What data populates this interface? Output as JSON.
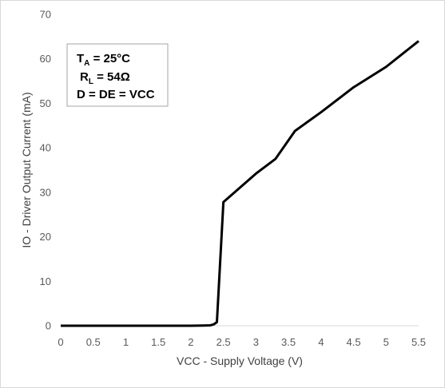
{
  "chart_data": {
    "type": "line",
    "xlabel": "VCC - Supply Voltage (V)",
    "ylabel": "IO - Driver Output Current (mA)",
    "xlim": [
      0,
      5.5
    ],
    "ylim": [
      0,
      70
    ],
    "xticks": [
      "0",
      "0.5",
      "1",
      "1.5",
      "2",
      "2.5",
      "3",
      "3.5",
      "4",
      "4.5",
      "5",
      "5.5"
    ],
    "yticks": [
      "0",
      "10",
      "20",
      "30",
      "40",
      "50",
      "60",
      "70"
    ],
    "grid": false,
    "series": [
      {
        "color": "#000000",
        "x": [
          0,
          2.0,
          2.2,
          2.3,
          2.35,
          2.4,
          2.5,
          3.0,
          3.3,
          3.6,
          4.0,
          4.5,
          5.0,
          5.5
        ],
        "y": [
          0,
          0,
          0.05,
          0.1,
          0.3,
          0.8,
          27.8,
          34.2,
          37.5,
          43.8,
          48.0,
          53.6,
          58.2,
          64.0
        ]
      }
    ],
    "annotations": {
      "line1_main": "T",
      "line1_sub": "A",
      "line1_rest": " = 25°C",
      "line2_main": "R",
      "line2_sub": "L",
      "line2_rest": " = 54Ω",
      "line3": "D = DE = VCC"
    }
  }
}
